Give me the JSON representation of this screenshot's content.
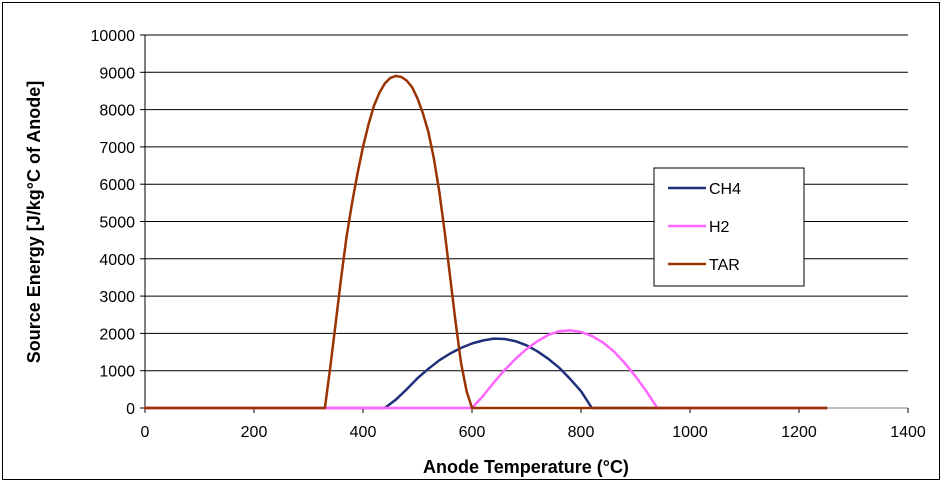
{
  "chart_data": {
    "type": "line",
    "title": "",
    "xlabel": "Anode Temperature (°C)",
    "ylabel": "Source Energy [J/kg°C of Anode]",
    "xlim": [
      0,
      1400
    ],
    "ylim": [
      0,
      10000
    ],
    "xticks": [
      0,
      200,
      400,
      600,
      800,
      1000,
      1200,
      1400
    ],
    "yticks": [
      0,
      1000,
      2000,
      3000,
      4000,
      5000,
      6000,
      7000,
      8000,
      9000,
      10000
    ],
    "x_tick_labels": [
      "0",
      "200",
      "400",
      "600",
      "800",
      "1000",
      "1200",
      "1400"
    ],
    "y_tick_labels": [
      "0",
      "1000",
      "2000",
      "3000",
      "4000",
      "5000",
      "6000",
      "7000",
      "8000",
      "9000",
      "10000"
    ],
    "grid": "horizontal",
    "legend_position": "right",
    "series": [
      {
        "name": "CH4",
        "color": "#1f2f7a",
        "x": [
          0,
          440,
          460,
          480,
          500,
          520,
          540,
          560,
          580,
          600,
          620,
          640,
          660,
          680,
          700,
          720,
          740,
          760,
          780,
          800,
          820,
          1250
        ],
        "y": [
          0,
          0,
          220,
          500,
          800,
          1050,
          1280,
          1460,
          1610,
          1730,
          1810,
          1860,
          1850,
          1790,
          1680,
          1520,
          1320,
          1080,
          780,
          450,
          0,
          0
        ]
      },
      {
        "name": "H2",
        "color": "#ff66ff",
        "x": [
          0,
          600,
          620,
          640,
          660,
          680,
          700,
          720,
          740,
          760,
          780,
          800,
          820,
          840,
          860,
          880,
          900,
          920,
          940,
          1250
        ],
        "y": [
          0,
          0,
          320,
          680,
          1020,
          1320,
          1580,
          1790,
          1960,
          2060,
          2080,
          2040,
          1930,
          1760,
          1520,
          1210,
          850,
          450,
          0,
          0
        ]
      },
      {
        "name": "TAR",
        "color": "#993300",
        "x": [
          0,
          330,
          340,
          350,
          360,
          370,
          380,
          390,
          400,
          410,
          420,
          430,
          440,
          450,
          460,
          470,
          480,
          490,
          500,
          510,
          520,
          530,
          540,
          550,
          560,
          570,
          580,
          590,
          600,
          1250
        ],
        "y": [
          0,
          0,
          1100,
          2300,
          3500,
          4600,
          5500,
          6300,
          7000,
          7600,
          8100,
          8450,
          8700,
          8850,
          8900,
          8880,
          8780,
          8600,
          8300,
          7900,
          7400,
          6700,
          5800,
          4700,
          3500,
          2300,
          1200,
          450,
          0,
          0
        ]
      }
    ]
  }
}
